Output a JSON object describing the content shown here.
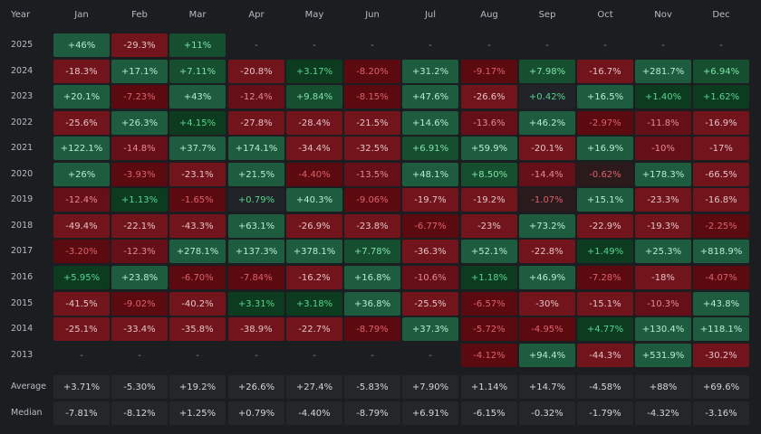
{
  "header": {
    "year_label": "Year",
    "months": [
      "Jan",
      "Feb",
      "Mar",
      "Apr",
      "May",
      "Jun",
      "Jul",
      "Aug",
      "Sep",
      "Oct",
      "Nov",
      "Dec"
    ]
  },
  "colors": {
    "background": "#1b1d20",
    "positive_strong": "#1e5c3f",
    "positive_mid": "#16502e",
    "positive_dark": "#0c3a1e",
    "neutral": "#202327",
    "negative_dark": "#5a0a0e",
    "negative_mid": "#66111a",
    "negative_strong": "#73141c",
    "stat_cell": "#242629"
  },
  "chart_data": {
    "type": "heatmap",
    "title": "",
    "x": [
      "Jan",
      "Feb",
      "Mar",
      "Apr",
      "May",
      "Jun",
      "Jul",
      "Aug",
      "Sep",
      "Oct",
      "Nov",
      "Dec"
    ],
    "y": [
      "2025",
      "2024",
      "2023",
      "2022",
      "2021",
      "2020",
      "2019",
      "2018",
      "2017",
      "2016",
      "2015",
      "2014",
      "2013"
    ],
    "rows": [
      {
        "year": "2025",
        "values": [
          "+46%",
          "-29.3%",
          "+11%",
          "-",
          "-",
          "-",
          "-",
          "-",
          "-",
          "-",
          "-",
          "-"
        ]
      },
      {
        "year": "2024",
        "values": [
          "-18.3%",
          "+17.1%",
          "+7.11%",
          "-20.8%",
          "+3.17%",
          "-8.20%",
          "+31.2%",
          "-9.17%",
          "+7.98%",
          "-16.7%",
          "+281.7%",
          "+6.94%"
        ]
      },
      {
        "year": "2023",
        "values": [
          "+20.1%",
          "-7.23%",
          "+43%",
          "-12.4%",
          "+9.84%",
          "-8.15%",
          "+47.6%",
          "-26.6%",
          "+0.42%",
          "+16.5%",
          "+1.40%",
          "+1.62%"
        ]
      },
      {
        "year": "2022",
        "values": [
          "-25.6%",
          "+26.3%",
          "+4.15%",
          "-27.8%",
          "-28.4%",
          "-21.5%",
          "+14.6%",
          "-13.6%",
          "+46.2%",
          "-2.97%",
          "-11.8%",
          "-16.9%"
        ]
      },
      {
        "year": "2021",
        "values": [
          "+122.1%",
          "-14.8%",
          "+37.7%",
          "+174.1%",
          "-34.4%",
          "-32.5%",
          "+6.91%",
          "+59.9%",
          "-20.1%",
          "+16.9%",
          "-10%",
          "-17%"
        ]
      },
      {
        "year": "2020",
        "values": [
          "+26%",
          "-3.93%",
          "-23.1%",
          "+21.5%",
          "-4.40%",
          "-13.5%",
          "+48.1%",
          "+8.50%",
          "-14.4%",
          "-0.62%",
          "+178.3%",
          "-66.5%"
        ]
      },
      {
        "year": "2019",
        "values": [
          "-12.4%",
          "+1.13%",
          "-1.65%",
          "+0.79%",
          "+40.3%",
          "-9.06%",
          "-19.7%",
          "-19.2%",
          "-1.07%",
          "+15.1%",
          "-23.3%",
          "-16.8%"
        ]
      },
      {
        "year": "2018",
        "values": [
          "-49.4%",
          "-22.1%",
          "-43.3%",
          "+63.1%",
          "-26.9%",
          "-23.8%",
          "-6.77%",
          "-23%",
          "+73.2%",
          "-22.9%",
          "-19.3%",
          "-2.25%"
        ]
      },
      {
        "year": "2017",
        "values": [
          "-3.20%",
          "-12.3%",
          "+278.1%",
          "+137.3%",
          "+378.1%",
          "+7.78%",
          "-36.3%",
          "+52.1%",
          "-22.8%",
          "+1.49%",
          "+25.3%",
          "+818.9%"
        ]
      },
      {
        "year": "2016",
        "values": [
          "+5.95%",
          "+23.8%",
          "-6.70%",
          "-7.84%",
          "-16.2%",
          "+16.8%",
          "-10.6%",
          "+1.18%",
          "+46.9%",
          "-7.28%",
          "-18%",
          "-4.07%"
        ]
      },
      {
        "year": "2015",
        "values": [
          "-41.5%",
          "-9.02%",
          "-40.2%",
          "+3.31%",
          "+3.18%",
          "+36.8%",
          "-25.5%",
          "-6.57%",
          "-30%",
          "-15.1%",
          "-10.3%",
          "+43.8%"
        ]
      },
      {
        "year": "2014",
        "values": [
          "-25.1%",
          "-33.4%",
          "-35.8%",
          "-38.9%",
          "-22.7%",
          "-8.79%",
          "+37.3%",
          "-5.72%",
          "-4.95%",
          "+4.77%",
          "+130.4%",
          "+118.1%"
        ]
      },
      {
        "year": "2013",
        "values": [
          "-",
          "-",
          "-",
          "-",
          "-",
          "-",
          "-",
          "-4.12%",
          "+94.4%",
          "-44.3%",
          "+531.9%",
          "-30.2%"
        ]
      }
    ],
    "summary": [
      {
        "label": "Average",
        "values": [
          "+3.71%",
          "-5.30%",
          "+19.2%",
          "+26.6%",
          "+27.4%",
          "-5.83%",
          "+7.90%",
          "+1.14%",
          "+14.7%",
          "-4.58%",
          "+88%",
          "+69.6%"
        ]
      },
      {
        "label": "Median",
        "values": [
          "-7.81%",
          "-8.12%",
          "+1.25%",
          "+0.79%",
          "-4.40%",
          "-8.79%",
          "+6.91%",
          "-6.15%",
          "-0.32%",
          "-1.79%",
          "-4.32%",
          "-3.16%"
        ]
      }
    ]
  }
}
